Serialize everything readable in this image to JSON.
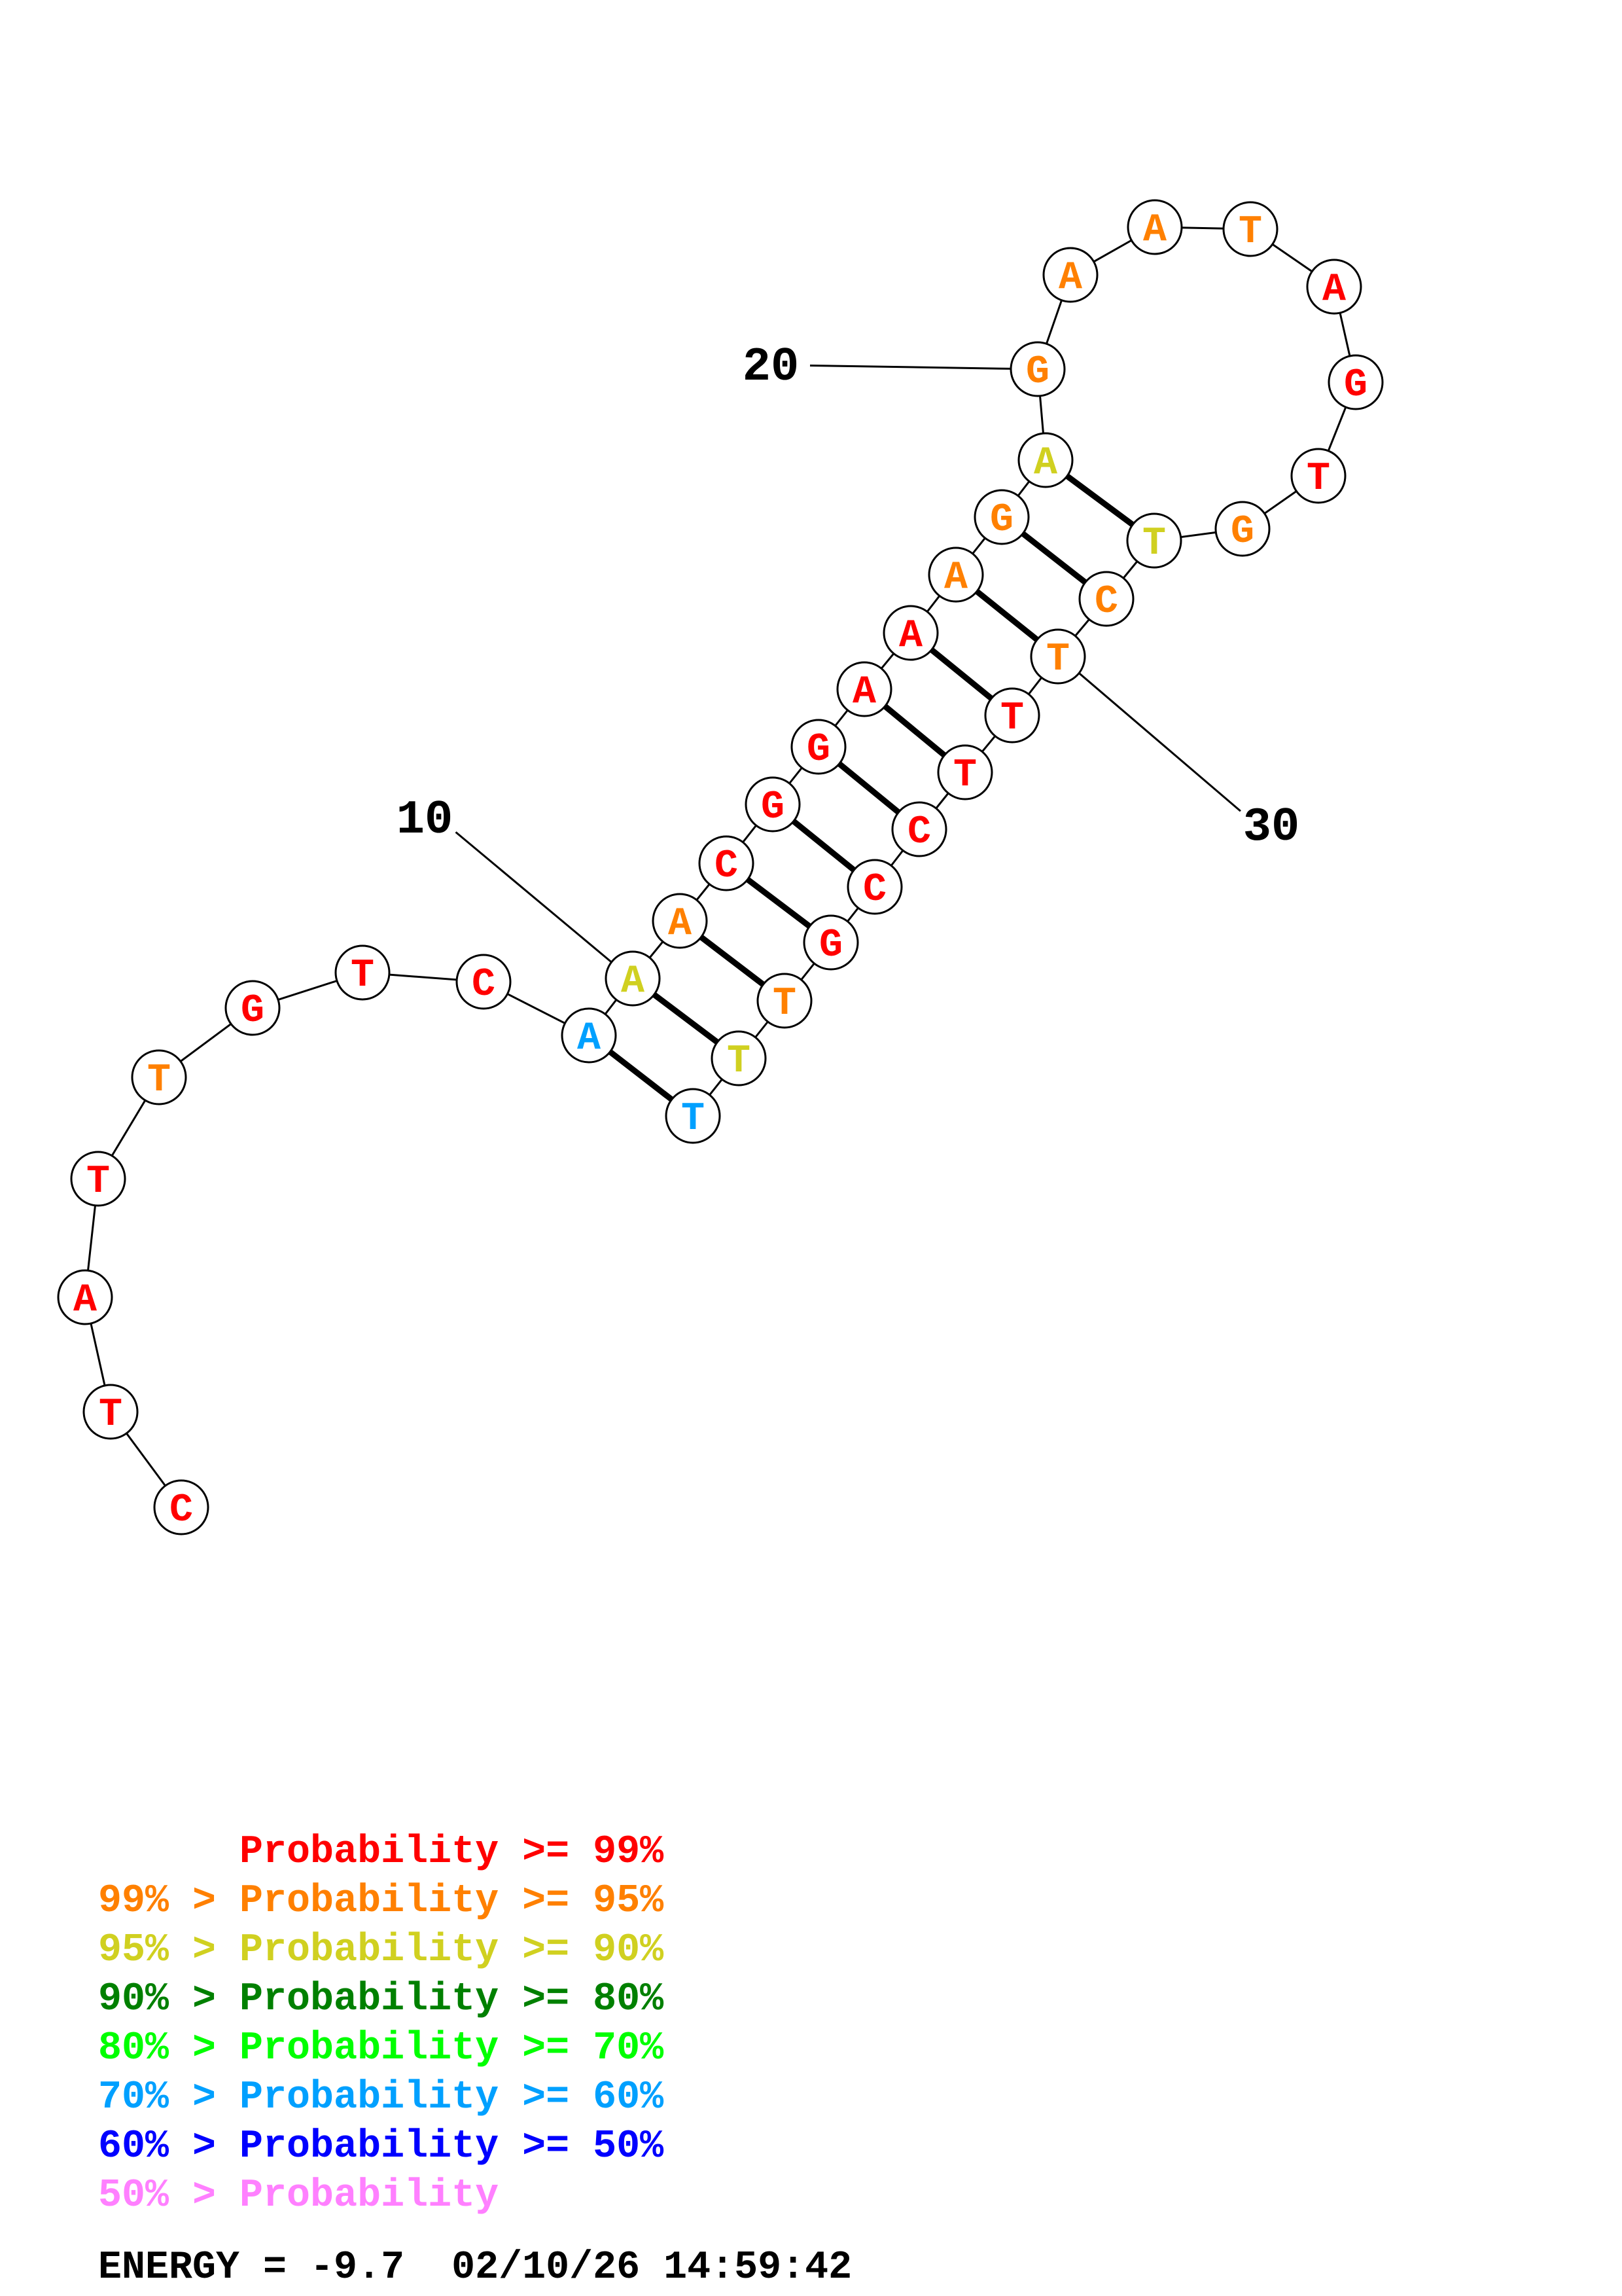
{
  "bases": [
    {
      "letter": "C",
      "color": "#ff0000"
    },
    {
      "letter": "T",
      "color": "#ff0000"
    },
    {
      "letter": "A",
      "color": "#ff0000"
    },
    {
      "letter": "T",
      "color": "#ff0000"
    },
    {
      "letter": "T",
      "color": "#ff8000"
    },
    {
      "letter": "G",
      "color": "#ff0000"
    },
    {
      "letter": "T",
      "color": "#ff0000"
    },
    {
      "letter": "C",
      "color": "#ff0000"
    },
    {
      "letter": "A",
      "color": "#00a0ff"
    },
    {
      "letter": "A",
      "color": "#d0d020"
    },
    {
      "letter": "A",
      "color": "#ff8000"
    },
    {
      "letter": "C",
      "color": "#ff0000"
    },
    {
      "letter": "G",
      "color": "#ff0000"
    },
    {
      "letter": "G",
      "color": "#ff0000"
    },
    {
      "letter": "A",
      "color": "#ff0000"
    },
    {
      "letter": "A",
      "color": "#ff0000"
    },
    {
      "letter": "A",
      "color": "#ff8000"
    },
    {
      "letter": "G",
      "color": "#ff8000"
    },
    {
      "letter": "A",
      "color": "#d0d020"
    },
    {
      "letter": "G",
      "color": "#ff8000"
    },
    {
      "letter": "A",
      "color": "#ff8000"
    },
    {
      "letter": "A",
      "color": "#ff8000"
    },
    {
      "letter": "T",
      "color": "#ff8000"
    },
    {
      "letter": "A",
      "color": "#ff0000"
    },
    {
      "letter": "G",
      "color": "#ff0000"
    },
    {
      "letter": "T",
      "color": "#ff0000"
    },
    {
      "letter": "G",
      "color": "#ff8000"
    },
    {
      "letter": "T",
      "color": "#d0d020"
    },
    {
      "letter": "C",
      "color": "#ff8000"
    },
    {
      "letter": "T",
      "color": "#ff8000"
    },
    {
      "letter": "T",
      "color": "#ff0000"
    },
    {
      "letter": "T",
      "color": "#ff0000"
    },
    {
      "letter": "C",
      "color": "#ff0000"
    },
    {
      "letter": "C",
      "color": "#ff0000"
    },
    {
      "letter": "G",
      "color": "#ff0000"
    },
    {
      "letter": "T",
      "color": "#ff8000"
    },
    {
      "letter": "T",
      "color": "#d0d020"
    },
    {
      "letter": "T",
      "color": "#00a0ff"
    }
  ],
  "pairs": [
    [
      9,
      38
    ],
    [
      10,
      37
    ],
    [
      11,
      36
    ],
    [
      12,
      35
    ],
    [
      13,
      34
    ],
    [
      14,
      33
    ],
    [
      15,
      32
    ],
    [
      16,
      31
    ],
    [
      17,
      30
    ],
    [
      18,
      29
    ],
    [
      19,
      28
    ]
  ],
  "position_labels": [
    {
      "text": "10",
      "base": 10
    },
    {
      "text": "20",
      "base": 20
    },
    {
      "text": "30",
      "base": 30
    }
  ],
  "legend": [
    {
      "text": "      Probability >= 99%",
      "color": "#ff0000"
    },
    {
      "text": "99% > Probability >= 95%",
      "color": "#ff8000"
    },
    {
      "text": "95% > Probability >= 90%",
      "color": "#d0d020"
    },
    {
      "text": "90% > Probability >= 80%",
      "color": "#008000"
    },
    {
      "text": "80% > Probability >= 70%",
      "color": "#00ff00"
    },
    {
      "text": "70% > Probability >= 60%",
      "color": "#00a0ff"
    },
    {
      "text": "60% > Probability >= 50%",
      "color": "#0000ff"
    },
    {
      "text": "50% > Probability",
      "color": "#ff80ff"
    }
  ],
  "energy_line": "ENERGY = -9.7  02/10/26 14:59:42"
}
